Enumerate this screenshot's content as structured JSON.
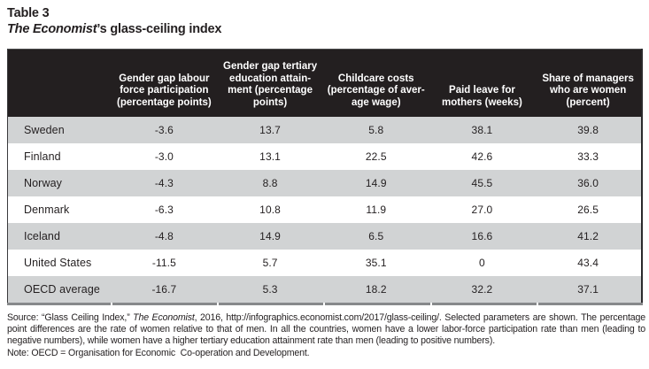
{
  "title": {
    "label": "Table 3",
    "subtitle_italic": "The Economist",
    "subtitle_rest": "’s glass-ceiling index"
  },
  "table": {
    "columns": [
      "",
      "Gender gap labour\nforce participation\n(percentage points)",
      "Gender gap tertiary\neducation attain-\nment (percentage\npoints)",
      "Childcare costs\n(percentage of aver-\nage wage)",
      "Paid leave for\nmothers (weeks)",
      "Share of managers\nwho are women\n(percent)"
    ],
    "rows": [
      {
        "country": "Sweden",
        "values": [
          "-3.6",
          "13.7",
          "5.8",
          "38.1",
          "39.8"
        ]
      },
      {
        "country": "Finland",
        "values": [
          "-3.0",
          "13.1",
          "22.5",
          "42.6",
          "33.3"
        ]
      },
      {
        "country": "Norway",
        "values": [
          "-4.3",
          "8.8",
          "14.9",
          "45.5",
          "36.0"
        ]
      },
      {
        "country": "Denmark",
        "values": [
          "-6.3",
          "10.8",
          "11.9",
          "27.0",
          "26.5"
        ]
      },
      {
        "country": "Iceland",
        "values": [
          "-4.8",
          "14.9",
          "6.5",
          "16.6",
          "41.2"
        ]
      },
      {
        "country": "United States",
        "values": [
          "-11.5",
          "5.7",
          "35.1",
          "0",
          "43.4"
        ]
      },
      {
        "country": "OECD average",
        "values": [
          "-16.7",
          "5.3",
          "18.2",
          "32.2",
          "37.1"
        ]
      }
    ]
  },
  "footer": {
    "source_prefix": "Source: “Glass Ceiling Index,” ",
    "source_italic": "The Economist",
    "source_suffix": ", 2016, http://infographics.economist.com/2017/glass-ceiling/. Selected parameters are shown. The percentage point differences are the rate of women relative to that of men. In all the countries, women have a lower labor-force participation rate than men (leading to negative numbers), while women have a higher tertiary education attainment rate than men (leading to positive numbers).",
    "note": "Note: OECD = Organisation for Economic  Co-operation and Development."
  },
  "colors": {
    "header_bg": "#231f20",
    "header_text": "#ffffff",
    "row_stripe": "#d1d3d4",
    "row_plain": "#ffffff",
    "bottom_rule": "#87898b",
    "body_text": "#231f20"
  },
  "chart_data": {
    "type": "table",
    "title": "The Economist’s glass-ceiling index",
    "categories": [
      "Sweden",
      "Finland",
      "Norway",
      "Denmark",
      "Iceland",
      "United States",
      "OECD average"
    ],
    "series": [
      {
        "name": "Gender gap labour force participation (percentage points)",
        "values": [
          -3.6,
          -3.0,
          -4.3,
          -6.3,
          -4.8,
          -11.5,
          -16.7
        ]
      },
      {
        "name": "Gender gap tertiary education attainment (percentage points)",
        "values": [
          13.7,
          13.1,
          8.8,
          10.8,
          14.9,
          5.7,
          5.3
        ]
      },
      {
        "name": "Childcare costs (percentage of average wage)",
        "values": [
          5.8,
          22.5,
          14.9,
          11.9,
          6.5,
          35.1,
          18.2
        ]
      },
      {
        "name": "Paid leave for mothers (weeks)",
        "values": [
          38.1,
          42.6,
          45.5,
          27.0,
          16.6,
          0,
          32.2
        ]
      },
      {
        "name": "Share of managers who are women (percent)",
        "values": [
          39.8,
          33.3,
          36.0,
          26.5,
          41.2,
          43.4,
          37.1
        ]
      }
    ]
  }
}
